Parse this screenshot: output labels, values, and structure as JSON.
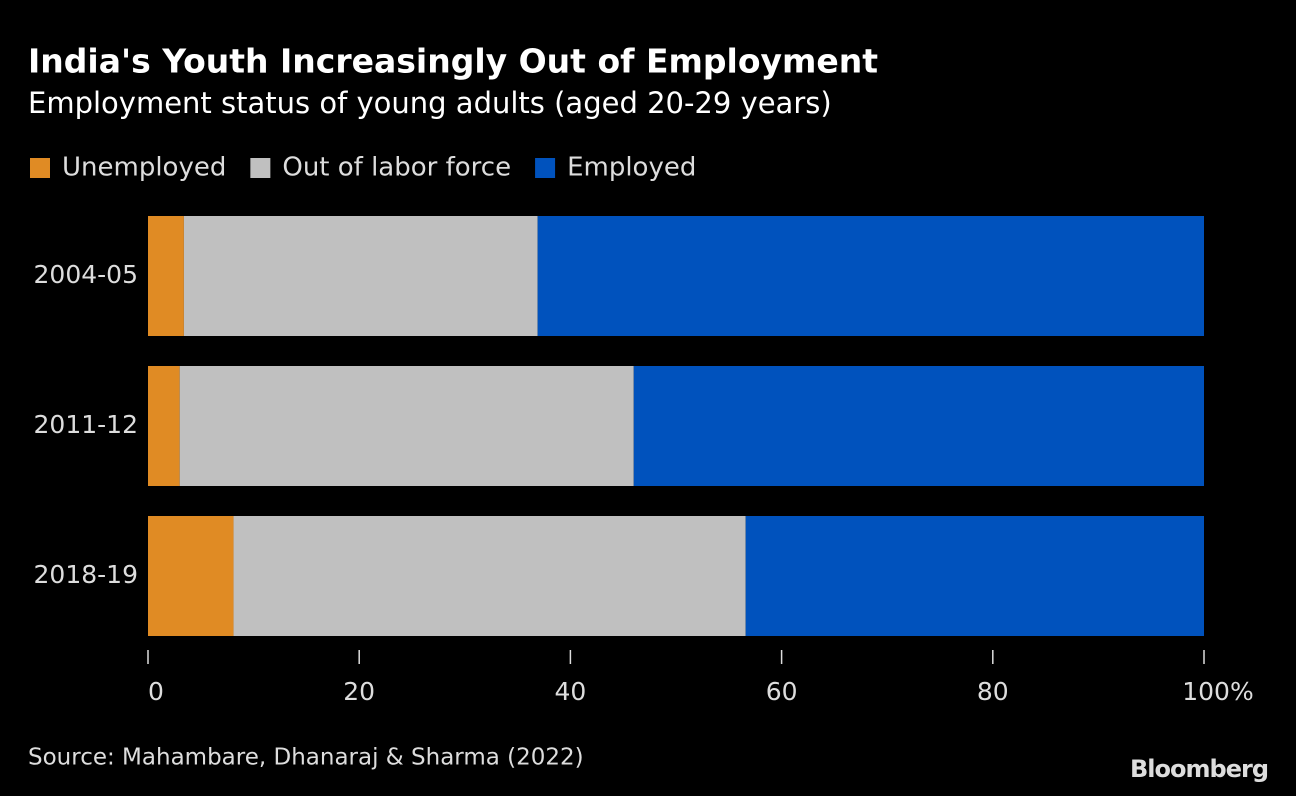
{
  "chart_data": {
    "type": "stacked_bar_horizontal",
    "title": "India's Youth Increasingly Out of Employment",
    "subtitle": "Employment status of young adults (aged 20-29 years)",
    "categories": [
      "2004-05",
      "2011-12",
      "2018-19"
    ],
    "series": [
      {
        "name": "Unemployed",
        "color": "#e08b24",
        "values": [
          3.4,
          3.0,
          8.1
        ]
      },
      {
        "name": "Out of labor force",
        "color": "#c0c0c0",
        "values": [
          33.5,
          43.0,
          48.5
        ]
      },
      {
        "name": "Employed",
        "color": "#0052bd",
        "values": [
          63.1,
          54.0,
          43.4
        ]
      }
    ],
    "xlim": [
      0,
      100
    ],
    "xticks": [
      0,
      20,
      40,
      60,
      80,
      {
        "value": 100,
        "label": "100%"
      }
    ],
    "legend": "top-left",
    "source": "Source: Mahambare, Dhanaraj & Sharma (2022)",
    "brand": "Bloomberg"
  }
}
